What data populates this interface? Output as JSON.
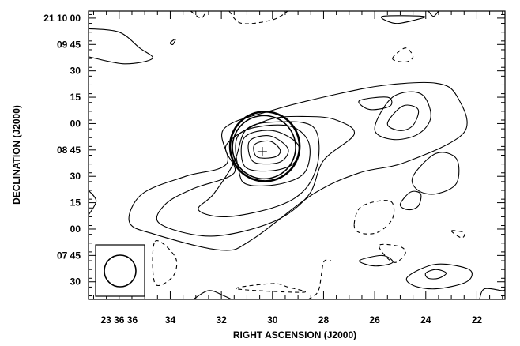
{
  "chart_data": {
    "type": "contour",
    "xlabel": "RIGHT ASCENSION (J2000)",
    "ylabel": "DECLINATION (J2000)",
    "x_ticks": [
      {
        "label": "23 36 36",
        "ra_sec": 36
      },
      {
        "label": "34",
        "ra_sec": 34
      },
      {
        "label": "32",
        "ra_sec": 32
      },
      {
        "label": "30",
        "ra_sec": 30
      },
      {
        "label": "28",
        "ra_sec": 28
      },
      {
        "label": "26",
        "ra_sec": 26
      },
      {
        "label": "24",
        "ra_sec": 24
      },
      {
        "label": "22",
        "ra_sec": 22
      }
    ],
    "y_ticks": [
      {
        "label": "21 10 00",
        "dec_arcsec": 600
      },
      {
        "label": "09 45",
        "dec_arcsec": 585
      },
      {
        "label": "30",
        "dec_arcsec": 570
      },
      {
        "label": "15",
        "dec_arcsec": 555
      },
      {
        "label": "00",
        "dec_arcsec": 540
      },
      {
        "label": "08 45",
        "dec_arcsec": 525
      },
      {
        "label": "30",
        "dec_arcsec": 510
      },
      {
        "label": "15",
        "dec_arcsec": 495
      },
      {
        "label": "00",
        "dec_arcsec": 480
      },
      {
        "label": "07 45",
        "dec_arcsec": 465
      },
      {
        "label": "30",
        "dec_arcsec": 450
      }
    ],
    "x_range_ra_sec": [
      37.2,
      20.9
    ],
    "y_range_dec_arcsec": [
      604,
      440
    ],
    "peak_marker": {
      "ra_sec": 30.4,
      "dec_arcsec": 524
    },
    "beam_ellipse": {
      "ra_sec": 30.3,
      "dec_arcsec": 527
    },
    "contours": {
      "solid": [
        {
          "name": "outer-envelope",
          "points": [
            [
              33.4,
              510
            ],
            [
              31.8,
              517
            ],
            [
              31.9,
              537
            ],
            [
              29.9,
              548
            ],
            [
              27.4,
              557
            ],
            [
              25.5,
              562
            ],
            [
              23.6,
              563
            ],
            [
              22.8,
              556
            ],
            [
              22.5,
              535
            ],
            [
              24.8,
              518
            ],
            [
              26.6,
              512
            ],
            [
              28.4,
              500
            ],
            [
              30.8,
              474
            ],
            [
              32.0,
              468
            ],
            [
              34.6,
              477
            ],
            [
              35.6,
              484
            ],
            [
              35.1,
              500
            ]
          ]
        },
        {
          "name": "level-2",
          "points": [
            [
              33.1,
              503
            ],
            [
              31.5,
              512
            ],
            [
              31.8,
              528
            ],
            [
              30.2,
              542
            ],
            [
              28.6,
              544
            ],
            [
              27.5,
              542
            ],
            [
              26.8,
              534
            ],
            [
              28.0,
              519
            ],
            [
              28.6,
              499
            ],
            [
              30.0,
              484
            ],
            [
              32.4,
              476
            ],
            [
              34.4,
              483
            ],
            [
              34.2,
              494
            ]
          ]
        },
        {
          "name": "level-3",
          "points": [
            [
              32.3,
              500
            ],
            [
              31.5,
              518
            ],
            [
              31.0,
              537
            ],
            [
              29.7,
              541
            ],
            [
              28.4,
              538
            ],
            [
              28.2,
              520
            ],
            [
              28.7,
              503
            ],
            [
              29.8,
              493
            ],
            [
              31.8,
              487
            ],
            [
              32.9,
              491
            ]
          ]
        },
        {
          "name": "level-4",
          "points": [
            [
              31.3,
              512
            ],
            [
              31.3,
              534
            ],
            [
              29.5,
              539
            ],
            [
              28.6,
              530
            ],
            [
              28.7,
              513
            ],
            [
              29.6,
              506
            ],
            [
              30.9,
              505
            ]
          ]
        },
        {
          "name": "level-5",
          "points": [
            [
              31.1,
              516
            ],
            [
              31.1,
              532
            ],
            [
              30.0,
              536
            ],
            [
              29.0,
              528
            ],
            [
              29.2,
              517
            ],
            [
              30.2,
              513
            ]
          ]
        },
        {
          "name": "level-6",
          "points": [
            [
              30.8,
              519
            ],
            [
              30.9,
              530
            ],
            [
              30.1,
              533
            ],
            [
              29.4,
              526
            ],
            [
              29.6,
              519
            ],
            [
              30.2,
              517
            ]
          ]
        },
        {
          "name": "level-7",
          "points": [
            [
              30.6,
              521
            ],
            [
              30.7,
              528
            ],
            [
              30.1,
              530
            ],
            [
              29.7,
              525
            ],
            [
              29.9,
              521
            ]
          ]
        },
        {
          "name": "east-knot-outer",
          "points": [
            [
              26.0,
              537
            ],
            [
              25.3,
              555
            ],
            [
              24.2,
              557
            ],
            [
              23.8,
              544
            ],
            [
              24.3,
              534
            ],
            [
              25.3,
              531
            ]
          ]
        },
        {
          "name": "east-knot-inner",
          "points": [
            [
              25.5,
              540
            ],
            [
              24.9,
              550
            ],
            [
              24.3,
              548
            ],
            [
              24.5,
              539
            ],
            [
              25.0,
              536
            ]
          ]
        },
        {
          "name": "north-knot",
          "points": [
            [
              26.6,
              553
            ],
            [
              25.5,
              555
            ],
            [
              25.4,
              550
            ],
            [
              26.2,
              548
            ]
          ]
        },
        {
          "name": "far-east-blob",
          "points": [
            [
              24.5,
              510
            ],
            [
              23.6,
              523
            ],
            [
              22.8,
              520
            ],
            [
              22.8,
              506
            ],
            [
              23.6,
              500
            ],
            [
              24.3,
              502
            ]
          ]
        },
        {
          "name": "mid-blob",
          "points": [
            [
              25.0,
              494
            ],
            [
              24.6,
              501
            ],
            [
              24.2,
              500
            ],
            [
              24.3,
              493
            ],
            [
              24.7,
              491
            ]
          ]
        },
        {
          "name": "small-north",
          "points": [
            [
              34.0,
              586
            ],
            [
              33.8,
              588
            ],
            [
              33.9,
              585
            ]
          ]
        },
        {
          "name": "se-outer",
          "points": [
            [
              24.7,
              453
            ],
            [
              23.6,
              460
            ],
            [
              22.3,
              457
            ],
            [
              22.4,
              450
            ],
            [
              23.6,
              446
            ],
            [
              24.5,
              448
            ]
          ]
        },
        {
          "name": "se-inner",
          "points": [
            [
              24.0,
              455
            ],
            [
              23.6,
              457
            ],
            [
              23.2,
              455
            ],
            [
              23.5,
              452
            ],
            [
              23.9,
              452
            ]
          ]
        },
        {
          "name": "se-small",
          "points": [
            [
              26.6,
              462
            ],
            [
              25.7,
              465
            ],
            [
              25.3,
              461
            ],
            [
              26.0,
              459
            ]
          ]
        },
        {
          "name": "ne-corner",
          "points": [
            [
              25.7,
              601
            ],
            [
              25.2,
              597
            ],
            [
              24.4,
              599
            ],
            [
              24.1,
              601
            ]
          ]
        },
        {
          "name": "nw-corner",
          "points": [
            [
              37.2,
              594
            ],
            [
              36.0,
              592
            ],
            [
              35.2,
              583
            ],
            [
              34.7,
              577
            ],
            [
              35.8,
              574
            ],
            [
              37.2,
              578
            ]
          ]
        },
        {
          "name": "west-edge",
          "points": [
            [
              37.2,
              502
            ],
            [
              36.9,
              496
            ],
            [
              37.2,
              488
            ]
          ]
        },
        {
          "name": "sw-edge-1",
          "points": [
            [
              33.1,
              440
            ],
            [
              32.5,
              445
            ],
            [
              31.9,
              442
            ],
            [
              31.6,
              440
            ]
          ]
        },
        {
          "name": "se-edge",
          "points": [
            [
              21.9,
              440
            ],
            [
              21.7,
              446
            ],
            [
              21.0,
              445
            ],
            [
              20.9,
              446
            ]
          ]
        },
        {
          "name": "ne-edge",
          "points": [
            [
              23.9,
              604
            ],
            [
              23.7,
              601
            ],
            [
              23.5,
              604
            ]
          ]
        }
      ],
      "dashed": [
        {
          "name": "neg-n1",
          "points": [
            [
              31.7,
              604
            ],
            [
              31.2,
              597
            ],
            [
              30.0,
              599
            ],
            [
              29.4,
              604
            ]
          ]
        },
        {
          "name": "neg-n2",
          "points": [
            [
              33.2,
              604
            ],
            [
              32.8,
              600
            ],
            [
              32.6,
              604
            ]
          ]
        },
        {
          "name": "neg-ne",
          "points": [
            [
              25.3,
              577
            ],
            [
              24.8,
              583
            ],
            [
              24.5,
              578
            ],
            [
              24.8,
              575
            ]
          ]
        },
        {
          "name": "neg-mid",
          "points": [
            [
              26.8,
              483
            ],
            [
              26.5,
              493
            ],
            [
              25.4,
              496
            ],
            [
              25.3,
              486
            ],
            [
              25.9,
              478
            ],
            [
              26.6,
              478
            ]
          ]
        },
        {
          "name": "neg-mid2",
          "points": [
            [
              25.8,
              471
            ],
            [
              25.0,
              470
            ],
            [
              24.8,
              466
            ],
            [
              25.2,
              461
            ],
            [
              25.6,
              465
            ]
          ]
        },
        {
          "name": "neg-sw",
          "points": [
            [
              34.6,
              473
            ],
            [
              33.8,
              464
            ],
            [
              33.9,
              453
            ],
            [
              34.6,
              449
            ]
          ]
        },
        {
          "name": "neg-s",
          "points": [
            [
              28.6,
              440
            ],
            [
              28.2,
              445
            ],
            [
              28.0,
              461
            ],
            [
              27.7,
              462
            ]
          ]
        },
        {
          "name": "neg-s2",
          "points": [
            [
              31.4,
              446
            ],
            [
              30.0,
              449
            ],
            [
              29.4,
              447
            ],
            [
              28.8,
              444
            ]
          ]
        },
        {
          "name": "neg-e",
          "points": [
            [
              23.0,
              479
            ],
            [
              22.6,
              475
            ],
            [
              22.5,
              478
            ]
          ]
        }
      ]
    }
  }
}
